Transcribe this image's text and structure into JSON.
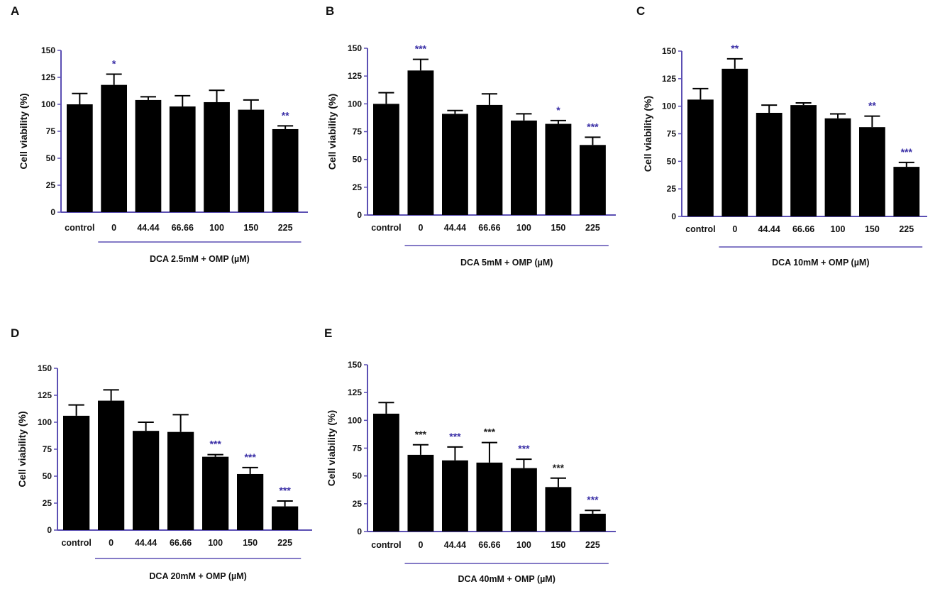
{
  "figure": {
    "axis_color": "#5b4fb3",
    "bar_color": "#000000",
    "sig_blue": "#3a2fa6",
    "sig_black": "#222222"
  },
  "chart_data": [
    {
      "panel": "A",
      "type": "bar",
      "ylabel": "Cell viability (%)",
      "ylim": [
        0,
        150
      ],
      "yticks": [
        0,
        25,
        50,
        75,
        100,
        125,
        150
      ],
      "categories": [
        "control",
        "0",
        "44.44",
        "66.66",
        "100",
        "150",
        "225"
      ],
      "values": [
        100,
        118,
        104,
        98,
        102,
        95,
        77
      ],
      "errors": [
        10,
        10,
        3,
        10,
        11,
        9,
        3
      ],
      "significance": [
        "",
        "*",
        "",
        "",
        "",
        "",
        "**"
      ],
      "sig_colors": [
        "blue",
        "blue",
        "blue",
        "blue",
        "blue",
        "blue",
        "blue"
      ],
      "group_label": "DCA 2.5mM + OMP (µM)",
      "group_start_index": 1
    },
    {
      "panel": "B",
      "type": "bar",
      "ylabel": "Cell viability (%)",
      "ylim": [
        0,
        150
      ],
      "yticks": [
        0,
        25,
        50,
        75,
        100,
        125,
        150
      ],
      "categories": [
        "control",
        "0",
        "44.44",
        "66.66",
        "100",
        "150",
        "225"
      ],
      "values": [
        100,
        130,
        91,
        99,
        85,
        82,
        63
      ],
      "errors": [
        10,
        10,
        3,
        10,
        6,
        3,
        7
      ],
      "significance": [
        "",
        "***",
        "",
        "",
        "",
        "*",
        "***"
      ],
      "sig_colors": [
        "blue",
        "blue",
        "blue",
        "blue",
        "blue",
        "blue",
        "blue"
      ],
      "group_label": "DCA 5mM + OMP (µM)",
      "group_start_index": 1
    },
    {
      "panel": "C",
      "type": "bar",
      "ylabel": "Cell viability (%)",
      "ylim": [
        0,
        150
      ],
      "yticks": [
        0,
        25,
        50,
        75,
        100,
        125,
        150
      ],
      "categories": [
        "control",
        "0",
        "44.44",
        "66.66",
        "100",
        "150",
        "225"
      ],
      "values": [
        106,
        134,
        94,
        101,
        89,
        81,
        45
      ],
      "errors": [
        10,
        9,
        7,
        2,
        4,
        10,
        4
      ],
      "significance": [
        "",
        "**",
        "",
        "",
        "",
        "**",
        "***"
      ],
      "sig_colors": [
        "blue",
        "blue",
        "blue",
        "blue",
        "blue",
        "blue",
        "blue"
      ],
      "group_label": "DCA 10mM + OMP (µM)",
      "group_start_index": 1
    },
    {
      "panel": "D",
      "type": "bar",
      "ylabel": "Cell viability (%)",
      "ylim": [
        0,
        150
      ],
      "yticks": [
        0,
        25,
        50,
        75,
        100,
        125,
        150
      ],
      "categories": [
        "control",
        "0",
        "44.44",
        "66.66",
        "100",
        "150",
        "225"
      ],
      "values": [
        106,
        120,
        92,
        91,
        68,
        52,
        22
      ],
      "errors": [
        10,
        10,
        8,
        16,
        2,
        6,
        5
      ],
      "significance": [
        "",
        "",
        "",
        "",
        "***",
        "***",
        "***"
      ],
      "sig_colors": [
        "blue",
        "blue",
        "blue",
        "blue",
        "blue",
        "blue",
        "blue"
      ],
      "group_label": "DCA 20mM + OMP (µM)",
      "group_start_index": 1
    },
    {
      "panel": "E",
      "type": "bar",
      "ylabel": "Cell viability (%)",
      "ylim": [
        0,
        150
      ],
      "yticks": [
        0,
        25,
        50,
        75,
        100,
        125,
        150
      ],
      "categories": [
        "control",
        "0",
        "44.44",
        "66.66",
        "100",
        "150",
        "225"
      ],
      "values": [
        106,
        69,
        64,
        62,
        57,
        40,
        16
      ],
      "errors": [
        10,
        9,
        12,
        18,
        8,
        8,
        3
      ],
      "significance": [
        "",
        "***",
        "***",
        "***",
        "***",
        "***",
        "***"
      ],
      "sig_colors": [
        "black",
        "black",
        "blue",
        "black",
        "blue",
        "black",
        "blue"
      ],
      "group_label": "DCA 40mM + OMP (µM)",
      "group_start_index": 1
    }
  ]
}
